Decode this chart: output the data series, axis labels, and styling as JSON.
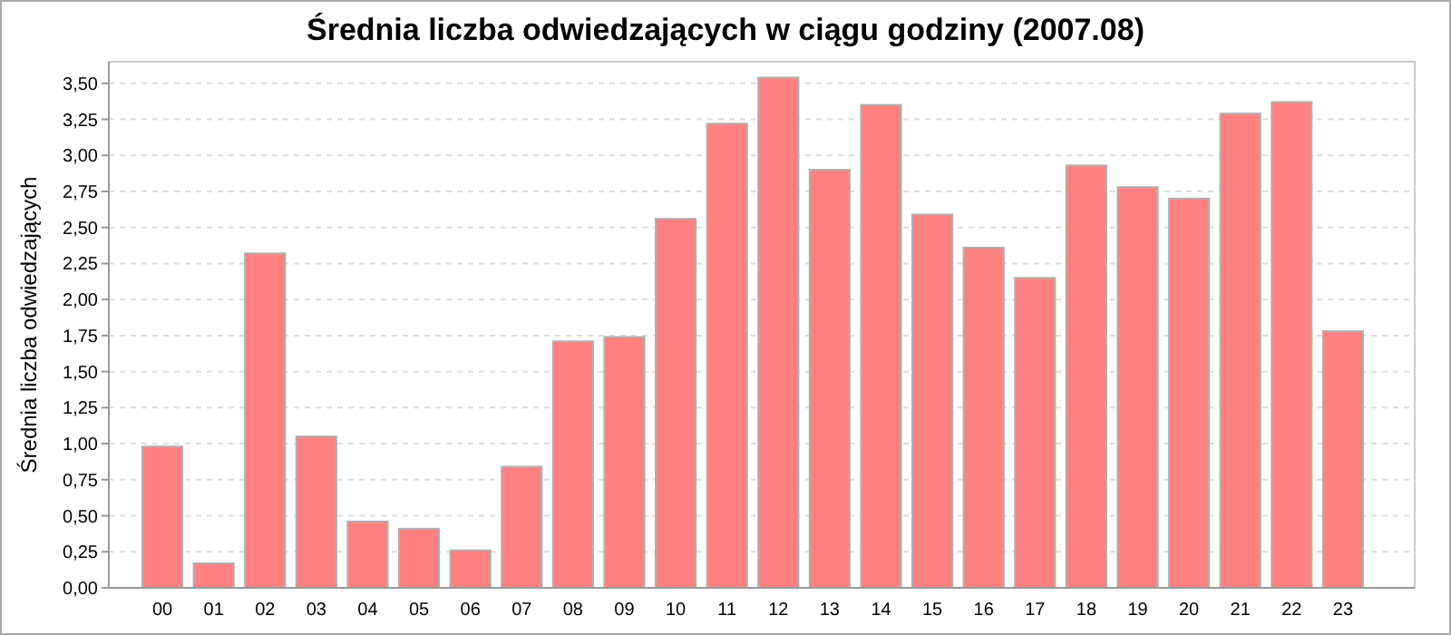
{
  "chart_data": {
    "type": "bar",
    "title": "Średnia liczba odwiedzających w ciągu godziny (2007.08)",
    "ylabel": "Średnia liczba odwiedzających",
    "categories": [
      "00",
      "01",
      "02",
      "03",
      "04",
      "05",
      "06",
      "07",
      "08",
      "09",
      "10",
      "11",
      "12",
      "13",
      "14",
      "15",
      "16",
      "17",
      "18",
      "19",
      "20",
      "21",
      "22",
      "23"
    ],
    "series": [
      {
        "color": "#ff8080",
        "values": [
          0.98,
          0.17,
          2.32,
          1.05,
          0.46,
          0.41,
          0.26,
          0.84,
          1.71,
          1.74,
          2.56,
          3.22,
          3.54,
          2.9,
          3.35,
          2.59,
          2.36,
          2.15,
          2.93,
          2.78,
          2.7,
          3.29,
          3.37,
          1.78
        ]
      }
    ],
    "ylim": [
      0,
      3.65
    ],
    "yticks": [
      {
        "value": 0,
        "label": "0,00"
      },
      {
        "value": 0.25,
        "label": "0,25"
      },
      {
        "value": 0.5,
        "label": "0,50"
      },
      {
        "value": 0.75,
        "label": "0,75"
      },
      {
        "value": 1,
        "label": "1,00"
      },
      {
        "value": 1.25,
        "label": "1,25"
      },
      {
        "value": 1.5,
        "label": "1,50"
      },
      {
        "value": 1.75,
        "label": "1,75"
      },
      {
        "value": 2,
        "label": "2,00"
      },
      {
        "value": 2.25,
        "label": "2,25"
      },
      {
        "value": 2.5,
        "label": "2,50"
      },
      {
        "value": 2.75,
        "label": "2,75"
      },
      {
        "value": 3,
        "label": "3,00"
      },
      {
        "value": 3.25,
        "label": "3,25"
      },
      {
        "value": 3.5,
        "label": "3,50"
      }
    ],
    "grid": "y"
  }
}
